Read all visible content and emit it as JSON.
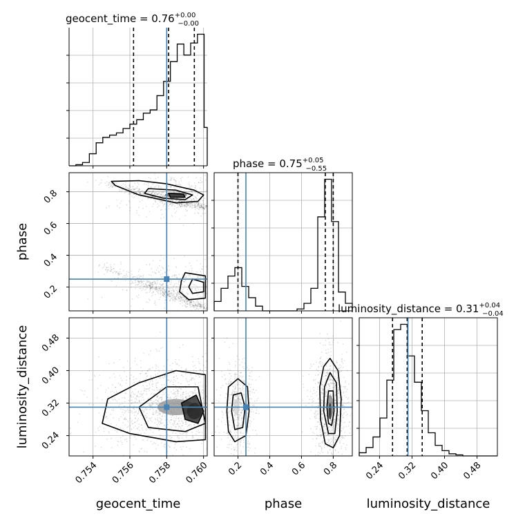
{
  "chart_data": {
    "type": "corner",
    "parameters": [
      "geocent_time",
      "phase",
      "luminosity_distance"
    ],
    "truths": {
      "geocent_time": 0.758,
      "phase": 0.25,
      "luminosity_distance": 0.31
    },
    "truth_color": "#4682b4",
    "ranges": {
      "geocent_time": [
        0.7527,
        0.7602
      ],
      "phase": [
        0.05,
        0.92
      ],
      "luminosity_distance": [
        0.19,
        0.53
      ]
    },
    "ticks": {
      "geocent_time": {
        "values": [
          0.754,
          0.756,
          0.758,
          0.76
        ],
        "labels": [
          "0.754",
          "0.756",
          "0.758",
          "0.760"
        ]
      },
      "phase": {
        "values": [
          0.2,
          0.4,
          0.6,
          0.8
        ],
        "labels": [
          "0.2",
          "0.4",
          "0.6",
          "0.8"
        ]
      },
      "luminosity_distance": {
        "values": [
          0.24,
          0.32,
          0.4,
          0.48
        ],
        "labels": [
          "0.24",
          "0.32",
          "0.40",
          "0.48"
        ]
      }
    },
    "titles": {
      "geocent_time": {
        "text": "geocent_time = 0.76",
        "plus": "+0.00",
        "minus": "−0.00"
      },
      "phase": {
        "text": "phase = 0.75",
        "plus": "+0.05",
        "minus": "−0.55"
      },
      "luminosity_distance": {
        "text": "luminosity_distance = 0.31",
        "plus": "+0.04",
        "minus": "−0.04"
      }
    },
    "quantile_lines": {
      "geocent_time": [
        0.7562,
        0.7581,
        0.7595
      ],
      "phase": [
        0.2,
        0.75,
        0.8
      ],
      "luminosity_distance": [
        0.272,
        0.308,
        0.345
      ]
    },
    "histograms": {
      "geocent_time": {
        "edges": [
          0.7527,
          0.75307,
          0.75343,
          0.7538,
          0.75417,
          0.75453,
          0.7549,
          0.75527,
          0.75563,
          0.756,
          0.75637,
          0.75673,
          0.7571,
          0.75747,
          0.75783,
          0.7582,
          0.75857,
          0.75893,
          0.7593,
          0.75967,
          0.76003,
          0.7604
        ],
        "counts": [
          0,
          1,
          3,
          11,
          21,
          26,
          28,
          30,
          34,
          38,
          42,
          48,
          51,
          64,
          77,
          95,
          111,
          101,
          112,
          120,
          35
        ]
      },
      "phase": {
        "edges": [
          0.05,
          0.0935,
          0.137,
          0.1805,
          0.224,
          0.2675,
          0.311,
          0.3545,
          0.398,
          0.4415,
          0.485,
          0.5285,
          0.572,
          0.6155,
          0.659,
          0.7025,
          0.746,
          0.7895,
          0.833,
          0.8765,
          0.92
        ],
        "counts": [
          10,
          24,
          37,
          46,
          26,
          14,
          5,
          0,
          0,
          0,
          0,
          0,
          2,
          8,
          24,
          100,
          140,
          95,
          20,
          8
        ]
      },
      "luminosity_distance": {
        "edges": [
          0.19,
          0.207,
          0.224,
          0.241,
          0.258,
          0.275,
          0.292,
          0.309,
          0.326,
          0.343,
          0.36,
          0.377,
          0.394,
          0.411,
          0.428,
          0.445,
          0.462,
          0.479,
          0.496,
          0.513,
          0.53
        ],
        "counts": [
          3,
          8,
          18,
          36,
          72,
          120,
          125,
          95,
          70,
          43,
          22,
          10,
          5,
          2,
          1,
          0,
          0,
          0,
          0,
          0
        ]
      }
    }
  }
}
